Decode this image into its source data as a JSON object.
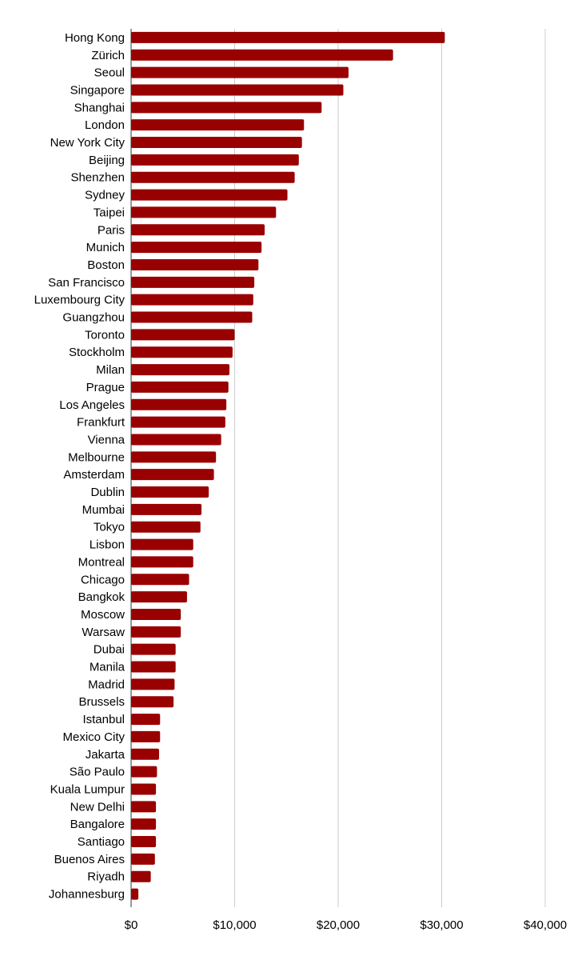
{
  "chart_data": {
    "type": "bar",
    "orientation": "horizontal",
    "categories": [
      "Hong Kong",
      "Zürich",
      "Seoul",
      "Singapore",
      "Shanghai",
      "London",
      "New York City",
      "Beijing",
      "Shenzhen",
      "Sydney",
      "Taipei",
      "Paris",
      "Munich",
      "Boston",
      "San Francisco",
      "Luxembourg City",
      "Guangzhou",
      "Toronto",
      "Stockholm",
      "Milan",
      "Prague",
      "Los Angeles",
      "Frankfurt",
      "Vienna",
      "Melbourne",
      "Amsterdam",
      "Dublin",
      "Mumbai",
      "Tokyo",
      "Lisbon",
      "Montreal",
      "Chicago",
      "Bangkok",
      "Moscow",
      "Warsaw",
      "Dubai",
      "Manila",
      "Madrid",
      "Brussels",
      "Istanbul",
      "Mexico City",
      "Jakarta",
      "São Paulo",
      "Kuala Lumpur",
      "New Delhi",
      "Bangalore",
      "Santiago",
      "Buenos Aires",
      "Riyadh",
      "Johannesburg"
    ],
    "values": [
      30300,
      25300,
      21000,
      20500,
      18400,
      16700,
      16500,
      16200,
      15800,
      15100,
      14000,
      12900,
      12600,
      12300,
      11900,
      11800,
      11700,
      10000,
      9800,
      9500,
      9400,
      9200,
      9100,
      8700,
      8200,
      8000,
      7500,
      6800,
      6700,
      6000,
      6000,
      5600,
      5400,
      4800,
      4800,
      4300,
      4300,
      4200,
      4100,
      2800,
      2800,
      2700,
      2500,
      2400,
      2400,
      2400,
      2400,
      2300,
      1900,
      700
    ],
    "xlim": [
      0,
      40000
    ],
    "xticks": [
      0,
      10000,
      20000,
      30000,
      40000
    ],
    "xtick_labels": [
      "$0",
      "$10,000",
      "$20,000",
      "$30,000",
      "$40,000"
    ],
    "grid": true,
    "bar_color": "#990000"
  }
}
